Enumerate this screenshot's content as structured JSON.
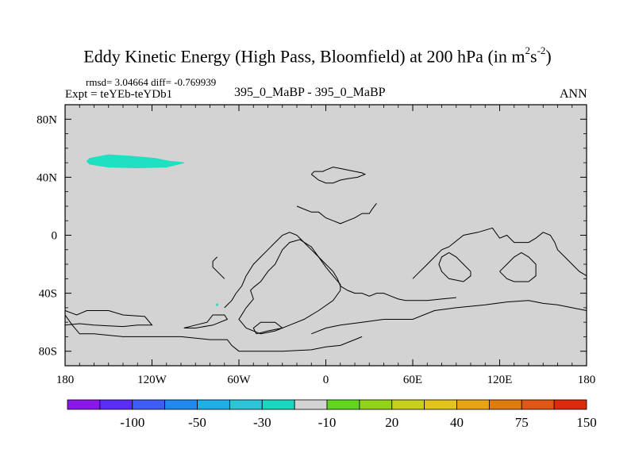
{
  "title": {
    "main": "Eddy Kinetic Energy (High Pass, Bloomfield) at 200 hPa (in m",
    "sup1": "2",
    "mid": "s",
    "sup2": "-2",
    "end": ")"
  },
  "stats": {
    "rmsd_text": "rmsd= 3.04664 diff= -0.769939"
  },
  "left_string": "Expt = teYEb-teYDb1",
  "center_string": "395_0_MaBP - 395_0_MaBP",
  "right_string": "ANN",
  "chart_data": {
    "type": "heatmap",
    "projection": "cylindrical-equidistant",
    "xlim": [
      -180,
      180
    ],
    "ylim": [
      -90,
      90
    ],
    "xticks": [
      {
        "value": -180,
        "label": "180"
      },
      {
        "value": -120,
        "label": "120W"
      },
      {
        "value": -60,
        "label": "60W"
      },
      {
        "value": 0,
        "label": "0"
      },
      {
        "value": 60,
        "label": "60E"
      },
      {
        "value": 120,
        "label": "120E"
      },
      {
        "value": 180,
        "label": "180"
      }
    ],
    "yticks": [
      {
        "value": 80,
        "label": "80N"
      },
      {
        "value": 40,
        "label": "40N"
      },
      {
        "value": 0,
        "label": "0"
      },
      {
        "value": -40,
        "label": "40S"
      },
      {
        "value": -80,
        "label": "80S"
      }
    ],
    "background_color": "#d3d3d3",
    "field_regions": [
      {
        "name": "north-pacific-anomaly",
        "level": "-10",
        "color": "#1fe0c0",
        "lonlat": [
          [
            -163,
            53
          ],
          [
            -150,
            55.5
          ],
          [
            -135,
            54.5
          ],
          [
            -118,
            53
          ],
          [
            -108,
            51
          ],
          [
            -98,
            50
          ],
          [
            -110,
            47
          ],
          [
            -130,
            46.5
          ],
          [
            -150,
            47
          ],
          [
            -163,
            49
          ],
          [
            -165,
            51
          ]
        ]
      },
      {
        "name": "south-pacific-speck",
        "level": "-10",
        "color": "#1fe0c0",
        "lonlat": [
          [
            -75.5,
            -47.5
          ],
          [
            -74.5,
            -47.5
          ],
          [
            -74.5,
            -48.5
          ],
          [
            -75.5,
            -48.5
          ]
        ]
      }
    ],
    "coastlines": [
      [
        [
          -180,
          -52
        ],
        [
          -172,
          -55
        ],
        [
          -165,
          -52
        ],
        [
          -150,
          -52
        ],
        [
          -140,
          -55
        ],
        [
          -125,
          -56
        ],
        [
          -120,
          -62
        ],
        [
          -130,
          -62
        ],
        [
          -140,
          -63
        ],
        [
          -160,
          -62
        ],
        [
          -170,
          -61
        ],
        [
          -180,
          -62
        ]
      ],
      [
        [
          -180,
          -55
        ],
        [
          -175,
          -62
        ],
        [
          -170,
          -68
        ],
        [
          -160,
          -68
        ],
        [
          -140,
          -70
        ],
        [
          -100,
          -70
        ],
        [
          -80,
          -72
        ],
        [
          -68,
          -72
        ],
        [
          -65,
          -76
        ],
        [
          -60,
          -80
        ],
        [
          -50,
          -80
        ],
        [
          -30,
          -80
        ],
        [
          -10,
          -79
        ],
        [
          0,
          -77
        ],
        [
          10,
          -76
        ],
        [
          20,
          -72
        ],
        [
          25,
          -70
        ]
      ],
      [
        [
          -98,
          -64
        ],
        [
          -90,
          -62
        ],
        [
          -82,
          -60
        ],
        [
          -78,
          -55
        ],
        [
          -70,
          -55
        ],
        [
          -68,
          -58
        ],
        [
          -78,
          -62
        ],
        [
          -90,
          -64
        ],
        [
          -98,
          -64
        ]
      ],
      [
        [
          -48,
          -68
        ],
        [
          -40,
          -66
        ],
        [
          -30,
          -64
        ],
        [
          -35,
          -60
        ],
        [
          -45,
          -60
        ],
        [
          -50,
          -64
        ],
        [
          -48,
          -68
        ]
      ],
      [
        [
          -10,
          -68
        ],
        [
          0,
          -64
        ],
        [
          10,
          -62
        ],
        [
          25,
          -60
        ],
        [
          40,
          -58
        ],
        [
          60,
          -58
        ],
        [
          75,
          -52
        ],
        [
          90,
          -50
        ],
        [
          110,
          -48
        ],
        [
          125,
          -46
        ],
        [
          140,
          -45
        ],
        [
          150,
          -47
        ],
        [
          160,
          -48
        ],
        [
          170,
          -50
        ],
        [
          180,
          -52
        ]
      ],
      [
        [
          -50,
          -36
        ],
        [
          -45,
          -32
        ],
        [
          -40,
          -25
        ],
        [
          -35,
          -20
        ],
        [
          -30,
          -10
        ],
        [
          -25,
          -5
        ],
        [
          -18,
          -3
        ],
        [
          -10,
          -8
        ],
        [
          -5,
          -15
        ],
        [
          0,
          -22
        ],
        [
          5,
          -28
        ],
        [
          10,
          -34
        ],
        [
          10,
          -38
        ],
        [
          5,
          -45
        ],
        [
          -5,
          -52
        ],
        [
          -15,
          -58
        ],
        [
          -25,
          -62
        ],
        [
          -35,
          -66
        ],
        [
          -45,
          -68
        ],
        [
          -55,
          -64
        ],
        [
          -60,
          -58
        ],
        [
          -55,
          -50
        ],
        [
          -50,
          -44
        ],
        [
          -52,
          -38
        ],
        [
          -50,
          -36
        ]
      ],
      [
        [
          -70,
          -50
        ],
        [
          -65,
          -45
        ],
        [
          -62,
          -40
        ],
        [
          -58,
          -35
        ],
        [
          -55,
          -28
        ],
        [
          -50,
          -20
        ],
        [
          -45,
          -15
        ],
        [
          -40,
          -10
        ],
        [
          -35,
          -5
        ],
        [
          -30,
          0
        ],
        [
          -25,
          2
        ],
        [
          -20,
          0
        ],
        [
          -15,
          -5
        ],
        [
          -10,
          -10
        ],
        [
          -5,
          -15
        ],
        [
          0,
          -20
        ],
        [
          5,
          -25
        ],
        [
          8,
          -30
        ],
        [
          10,
          -35
        ],
        [
          15,
          -38
        ],
        [
          20,
          -40
        ],
        [
          25,
          -40
        ],
        [
          30,
          -42
        ],
        [
          35,
          -40
        ],
        [
          40,
          -40
        ],
        [
          45,
          -42
        ],
        [
          50,
          -44
        ],
        [
          55,
          -45
        ],
        [
          60,
          -45
        ],
        [
          70,
          -45
        ],
        [
          80,
          -44
        ],
        [
          90,
          -43
        ]
      ],
      [
        [
          -10,
          42
        ],
        [
          -8,
          44
        ],
        [
          -2,
          44
        ],
        [
          0,
          45
        ],
        [
          5,
          47
        ],
        [
          10,
          46
        ],
        [
          15,
          45
        ],
        [
          20,
          44
        ],
        [
          25,
          43
        ],
        [
          27,
          42
        ],
        [
          22,
          40
        ],
        [
          15,
          39
        ],
        [
          10,
          38
        ],
        [
          5,
          36
        ],
        [
          0,
          36
        ],
        [
          -5,
          38
        ],
        [
          -10,
          42
        ]
      ],
      [
        [
          -20,
          20
        ],
        [
          -15,
          18
        ],
        [
          -10,
          16
        ],
        [
          -5,
          16
        ],
        [
          0,
          12
        ],
        [
          5,
          10
        ],
        [
          10,
          8
        ],
        [
          15,
          10
        ],
        [
          20,
          12
        ],
        [
          25,
          15
        ],
        [
          30,
          15
        ],
        [
          32,
          18
        ],
        [
          35,
          22
        ]
      ],
      [
        [
          -70,
          -30
        ],
        [
          -72,
          -28
        ],
        [
          -75,
          -25
        ],
        [
          -78,
          -22
        ],
        [
          -78,
          -18
        ],
        [
          -75,
          -15
        ]
      ],
      [
        [
          60,
          -30
        ],
        [
          65,
          -25
        ],
        [
          70,
          -20
        ],
        [
          75,
          -15
        ],
        [
          80,
          -10
        ],
        [
          85,
          -8
        ],
        [
          95,
          0
        ],
        [
          105,
          2
        ],
        [
          115,
          5
        ],
        [
          120,
          -2
        ],
        [
          125,
          0
        ],
        [
          130,
          -5
        ],
        [
          140,
          -5
        ],
        [
          145,
          -2
        ],
        [
          150,
          2
        ],
        [
          155,
          0
        ],
        [
          158,
          -5
        ],
        [
          160,
          -10
        ],
        [
          165,
          -15
        ],
        [
          170,
          -20
        ],
        [
          175,
          -25
        ],
        [
          180,
          -28
        ]
      ],
      [
        [
          100,
          -25
        ],
        [
          95,
          -20
        ],
        [
          90,
          -15
        ],
        [
          85,
          -12
        ],
        [
          80,
          -15
        ],
        [
          78,
          -20
        ],
        [
          80,
          -25
        ],
        [
          85,
          -30
        ],
        [
          95,
          -32
        ],
        [
          100,
          -28
        ],
        [
          100,
          -25
        ]
      ],
      [
        [
          120,
          -25
        ],
        [
          125,
          -20
        ],
        [
          130,
          -15
        ],
        [
          135,
          -12
        ],
        [
          140,
          -15
        ],
        [
          145,
          -20
        ],
        [
          145,
          -28
        ],
        [
          140,
          -32
        ],
        [
          130,
          -32
        ],
        [
          125,
          -30
        ],
        [
          120,
          -25
        ]
      ]
    ],
    "colorbar": {
      "labels": [
        "-100",
        "-50",
        "-30",
        "-10",
        "20",
        "40",
        "75",
        "150"
      ],
      "colors": [
        "#8a17e6",
        "#5b2cf5",
        "#3d5df5",
        "#2188ee",
        "#21aee6",
        "#2fc4d8",
        "#19d8c0",
        "#d3d3d3",
        "#62d61e",
        "#92d21a",
        "#c7d01e",
        "#e2c41c",
        "#e8a414",
        "#e07b10",
        "#e05614",
        "#dc2a0e"
      ]
    }
  }
}
